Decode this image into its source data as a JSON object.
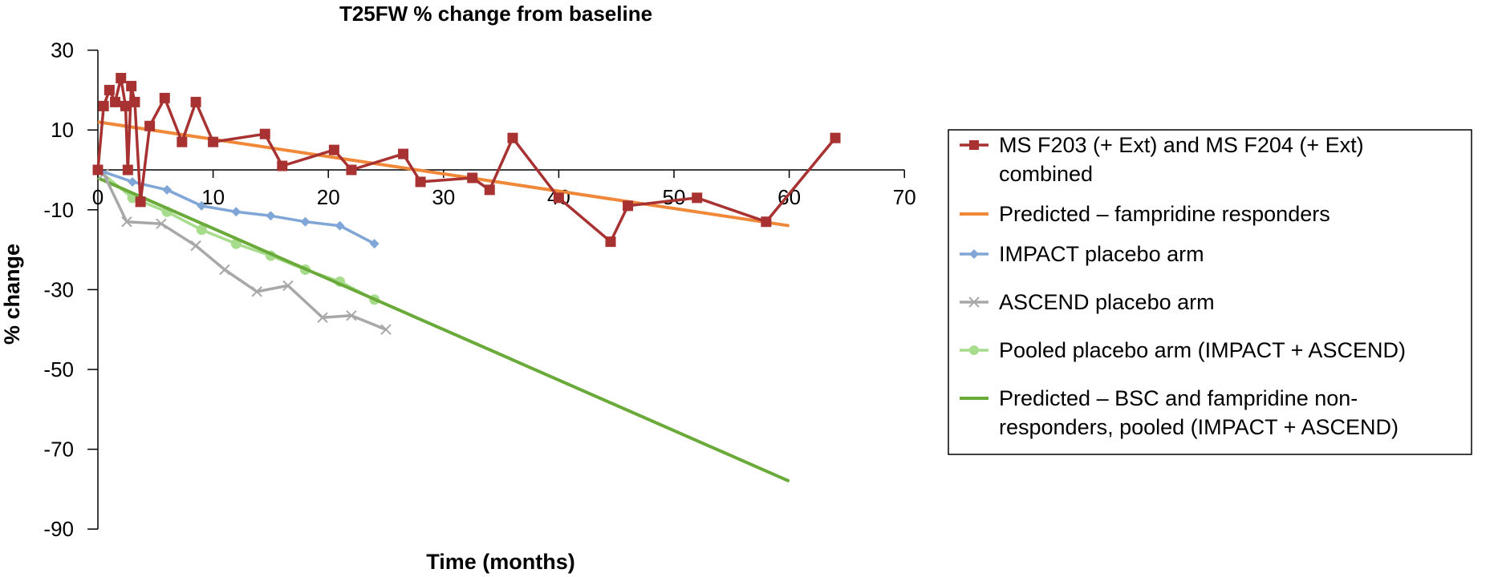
{
  "chart_data": {
    "type": "line",
    "title": "T25FW % change from baseline",
    "xlabel": "Time (months)",
    "ylabel": "% change",
    "xlim": [
      0,
      70
    ],
    "ylim": [
      -90,
      30
    ],
    "x_ticks": [
      "0",
      "10",
      "20",
      "30",
      "40",
      "50",
      "60",
      "70"
    ],
    "y_ticks": [
      "30",
      "10",
      "-10",
      "-30",
      "-50",
      "-70",
      "-90"
    ],
    "grid": false,
    "legend_position": "right",
    "series": [
      {
        "name": "MS F203 (+ Ext) and MS F204 (+ Ext) combined",
        "color": "#a83232",
        "marker": "square",
        "points": [
          [
            0,
            0
          ],
          [
            0.5,
            16
          ],
          [
            1,
            20
          ],
          [
            1.5,
            17
          ],
          [
            2,
            23
          ],
          [
            2.4,
            16
          ],
          [
            2.6,
            0
          ],
          [
            2.9,
            21
          ],
          [
            3.2,
            17
          ],
          [
            3.7,
            -8
          ],
          [
            4.5,
            11
          ],
          [
            5.8,
            18
          ],
          [
            7.3,
            7
          ],
          [
            8.5,
            17
          ],
          [
            10,
            7
          ],
          [
            14.5,
            9
          ],
          [
            16,
            1
          ],
          [
            20.5,
            5
          ],
          [
            22,
            0
          ],
          [
            26.5,
            4
          ],
          [
            28,
            -3
          ],
          [
            32.5,
            -2
          ],
          [
            34,
            -5
          ],
          [
            36,
            8
          ],
          [
            40,
            -7
          ],
          [
            44.5,
            -18
          ],
          [
            46,
            -9
          ],
          [
            52,
            -7
          ],
          [
            58,
            -13
          ],
          [
            64,
            8
          ]
        ]
      },
      {
        "name": "Predicted – fampridine responders",
        "color": "#f0883a",
        "marker": "none",
        "points": [
          [
            0,
            12
          ],
          [
            60,
            -14
          ]
        ]
      },
      {
        "name": "IMPACT placebo arm",
        "color": "#7fa6d6",
        "marker": "diamond",
        "points": [
          [
            0,
            0
          ],
          [
            3,
            -3
          ],
          [
            6,
            -5
          ],
          [
            9,
            -9
          ],
          [
            12,
            -10.5
          ],
          [
            15,
            -11.5
          ],
          [
            18,
            -13
          ],
          [
            21,
            -14
          ],
          [
            24,
            -18.5
          ]
        ]
      },
      {
        "name": "ASCEND placebo arm",
        "color": "#a8a8a8",
        "marker": "cross",
        "points": [
          [
            0,
            0
          ],
          [
            0.5,
            -1
          ],
          [
            2.5,
            -13
          ],
          [
            5.5,
            -13.5
          ],
          [
            8.5,
            -19
          ],
          [
            11,
            -25
          ],
          [
            13.8,
            -30.5
          ],
          [
            16.5,
            -29
          ],
          [
            19.5,
            -37
          ],
          [
            22,
            -36.5
          ],
          [
            25,
            -40
          ]
        ]
      },
      {
        "name": "Pooled placebo arm (IMPACT + ASCEND)",
        "color": "#a6dc8c",
        "marker": "circle",
        "points": [
          [
            0,
            0
          ],
          [
            3,
            -7
          ],
          [
            6,
            -10.5
          ],
          [
            9,
            -15
          ],
          [
            12,
            -18.5
          ],
          [
            15,
            -21.5
          ],
          [
            18,
            -25
          ],
          [
            21,
            -28
          ],
          [
            24,
            -32.5
          ]
        ]
      },
      {
        "name": "Predicted – BSC and fampridine non-responders, pooled (IMPACT + ASCEND)",
        "color": "#6aaa3a",
        "marker": "none",
        "points": [
          [
            0,
            -2
          ],
          [
            60,
            -78
          ]
        ]
      }
    ],
    "legend_lines": [
      [
        "MS F203 (+ Ext) and MS F204 (+ Ext)",
        "combined"
      ],
      [
        "Predicted – fampridine responders"
      ],
      [
        "IMPACT placebo arm"
      ],
      [
        "ASCEND placebo arm"
      ],
      [
        "Pooled placebo arm (IMPACT + ASCEND)"
      ],
      [
        "Predicted – BSC and fampridine non-",
        "responders, pooled (IMPACT + ASCEND)"
      ]
    ]
  }
}
